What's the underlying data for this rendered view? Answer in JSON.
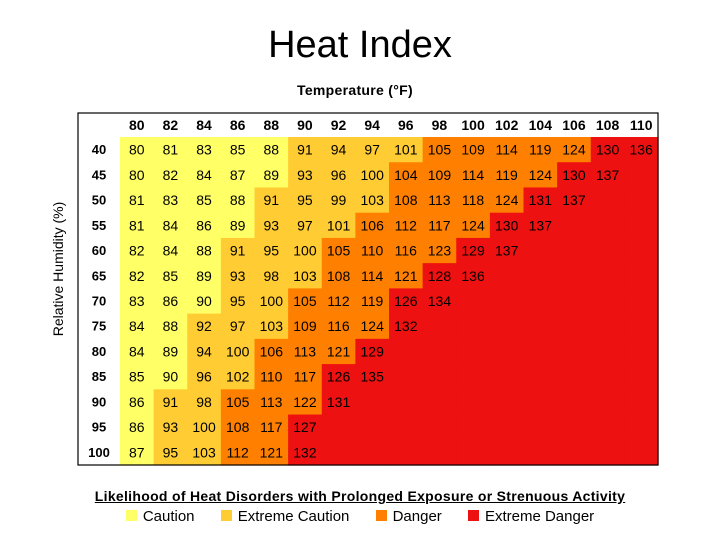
{
  "chart_data": {
    "type": "heatmap",
    "title": "Heat Index",
    "xlabel": "Temperature (°F)",
    "ylabel": "Relative Humidity (%)",
    "x": [
      80,
      82,
      84,
      86,
      88,
      90,
      92,
      94,
      96,
      98,
      100,
      102,
      104,
      106,
      108,
      110
    ],
    "y": [
      40,
      45,
      50,
      55,
      60,
      65,
      70,
      75,
      80,
      85,
      90,
      95,
      100
    ],
    "values": [
      [
        80,
        81,
        83,
        85,
        88,
        91,
        94,
        97,
        101,
        105,
        109,
        114,
        119,
        124,
        130,
        136
      ],
      [
        80,
        82,
        84,
        87,
        89,
        93,
        96,
        100,
        104,
        109,
        114,
        119,
        124,
        130,
        137,
        null
      ],
      [
        81,
        83,
        85,
        88,
        91,
        95,
        99,
        103,
        108,
        113,
        118,
        124,
        131,
        137,
        null,
        null
      ],
      [
        81,
        84,
        86,
        89,
        93,
        97,
        101,
        106,
        112,
        117,
        124,
        130,
        137,
        null,
        null,
        null
      ],
      [
        82,
        84,
        88,
        91,
        95,
        100,
        105,
        110,
        116,
        123,
        129,
        137,
        null,
        null,
        null,
        null
      ],
      [
        82,
        85,
        89,
        93,
        98,
        103,
        108,
        114,
        121,
        128,
        136,
        null,
        null,
        null,
        null,
        null
      ],
      [
        83,
        86,
        90,
        95,
        100,
        105,
        112,
        119,
        126,
        134,
        null,
        null,
        null,
        null,
        null,
        null
      ],
      [
        84,
        88,
        92,
        97,
        103,
        109,
        116,
        124,
        132,
        null,
        null,
        null,
        null,
        null,
        null,
        null
      ],
      [
        84,
        89,
        94,
        100,
        106,
        113,
        121,
        129,
        null,
        null,
        null,
        null,
        null,
        null,
        null,
        null
      ],
      [
        85,
        90,
        96,
        102,
        110,
        117,
        126,
        135,
        null,
        null,
        null,
        null,
        null,
        null,
        null,
        null
      ],
      [
        86,
        91,
        98,
        105,
        113,
        122,
        131,
        null,
        null,
        null,
        null,
        null,
        null,
        null,
        null,
        null
      ],
      [
        86,
        93,
        100,
        108,
        117,
        127,
        null,
        null,
        null,
        null,
        null,
        null,
        null,
        null,
        null,
        null
      ],
      [
        87,
        95,
        103,
        112,
        121,
        132,
        null,
        null,
        null,
        null,
        null,
        null,
        null,
        null,
        null,
        null
      ]
    ],
    "categories_legend": [
      {
        "name": "Caution",
        "color": "#ffff66"
      },
      {
        "name": "Extreme Caution",
        "color": "#ffcc33"
      },
      {
        "name": "Danger",
        "color": "#ff8000"
      },
      {
        "name": "Extreme Danger",
        "color": "#ee1111"
      }
    ],
    "caption": "Likelihood of Heat Disorders with Prolonged Exposure or Strenuous Activity"
  }
}
